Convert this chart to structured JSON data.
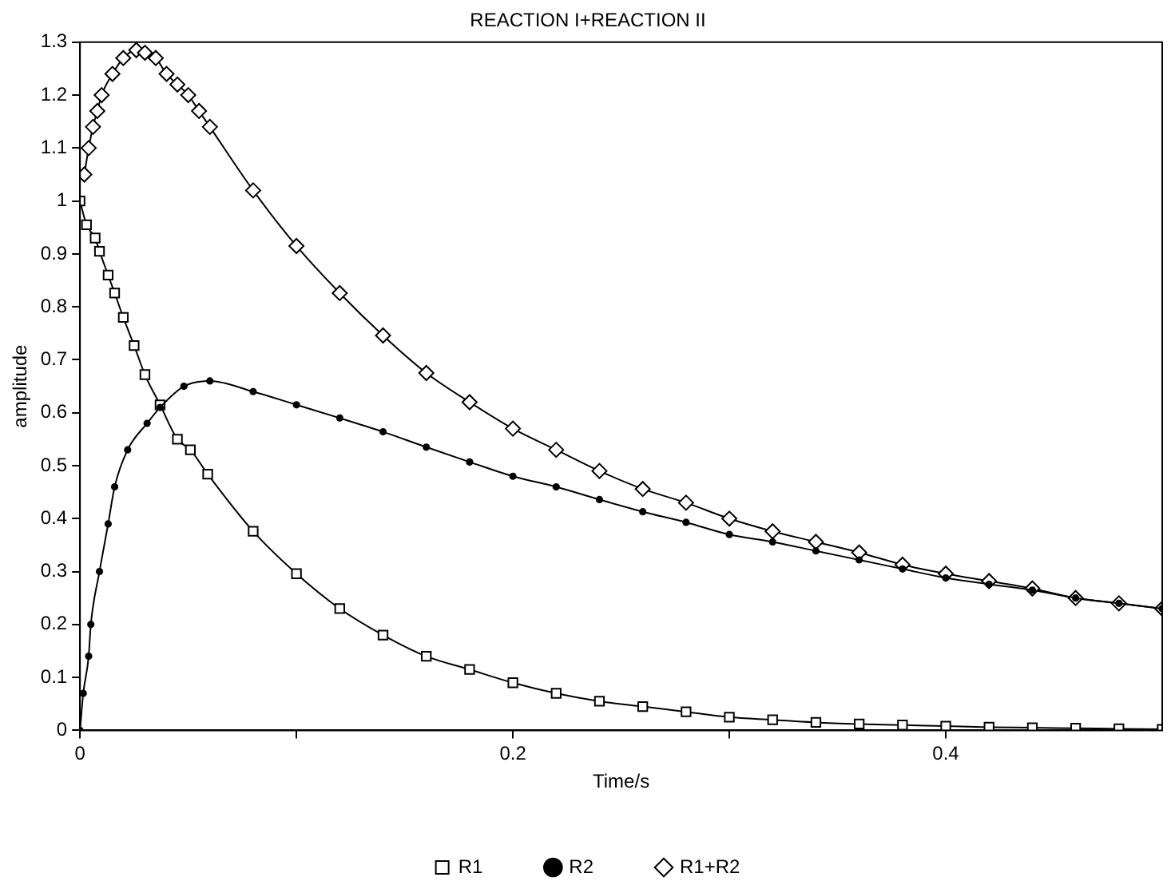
{
  "chart_data": {
    "type": "line",
    "title": "REACTION I+REACTION II",
    "xlabel": "Time/s",
    "ylabel": "amplitude",
    "xlim": [
      0,
      0.5
    ],
    "ylim": [
      0,
      1.3
    ],
    "xticks": [
      0,
      {
        "value": 0.1,
        "label": null
      },
      0.2,
      {
        "value": 0.3,
        "label": null
      },
      0.4
    ],
    "yticks": [
      0,
      0.1,
      0.2,
      0.3,
      0.4,
      0.5,
      0.6,
      0.7,
      0.8,
      0.9,
      1,
      1.1,
      1.2,
      1.3
    ],
    "grid": false,
    "legend": "bottom",
    "line_style": "solid",
    "series": [
      {
        "name": "R1",
        "color": "#000000",
        "marker": "square",
        "x": [
          0,
          0.003,
          0.007,
          0.009,
          0.013,
          0.016,
          0.02,
          0.025,
          0.03,
          0.037,
          0.045,
          0.051,
          0.059,
          0.08,
          0.1,
          0.12,
          0.14,
          0.16,
          0.18,
          0.2,
          0.22,
          0.24,
          0.26,
          0.28,
          0.3,
          0.32,
          0.34,
          0.36,
          0.38,
          0.4,
          0.42,
          0.44,
          0.46,
          0.48,
          0.5
        ],
        "values": [
          1.0,
          0.955,
          0.93,
          0.905,
          0.86,
          0.826,
          0.78,
          0.727,
          0.672,
          0.615,
          0.55,
          0.53,
          0.484,
          0.376,
          0.296,
          0.23,
          0.18,
          0.14,
          0.115,
          0.09,
          0.07,
          0.055,
          0.045,
          0.035,
          0.025,
          0.02,
          0.015,
          0.012,
          0.01,
          0.008,
          0.006,
          0.005,
          0.004,
          0.003,
          0.002
        ]
      },
      {
        "name": "R2",
        "color": "#000000",
        "marker": "circle",
        "x": [
          0,
          0.0015,
          0.004,
          0.005,
          0.009,
          0.013,
          0.016,
          0.022,
          0.031,
          0.037,
          0.048,
          0.06,
          0.08,
          0.1,
          0.12,
          0.14,
          0.16,
          0.18,
          0.2,
          0.22,
          0.24,
          0.26,
          0.28,
          0.3,
          0.32,
          0.34,
          0.36,
          0.38,
          0.4,
          0.42,
          0.44,
          0.46,
          0.48,
          0.5
        ],
        "values": [
          0,
          0.07,
          0.14,
          0.2,
          0.3,
          0.39,
          0.46,
          0.53,
          0.58,
          0.61,
          0.65,
          0.66,
          0.64,
          0.615,
          0.59,
          0.564,
          0.535,
          0.507,
          0.48,
          0.46,
          0.436,
          0.413,
          0.393,
          0.37,
          0.356,
          0.339,
          0.322,
          0.305,
          0.288,
          0.276,
          0.265,
          0.25,
          0.24,
          0.23
        ]
      },
      {
        "name": "R1+R2",
        "color": "#000000",
        "marker": "diamond",
        "x": [
          0.002,
          0.004,
          0.006,
          0.008,
          0.01,
          0.015,
          0.02,
          0.026,
          0.03,
          0.035,
          0.04,
          0.045,
          0.05,
          0.055,
          0.06,
          0.08,
          0.1,
          0.12,
          0.14,
          0.16,
          0.18,
          0.2,
          0.22,
          0.24,
          0.26,
          0.28,
          0.3,
          0.32,
          0.34,
          0.36,
          0.38,
          0.4,
          0.42,
          0.44,
          0.46,
          0.48,
          0.5
        ],
        "values": [
          1.05,
          1.1,
          1.14,
          1.17,
          1.2,
          1.24,
          1.27,
          1.285,
          1.28,
          1.27,
          1.24,
          1.22,
          1.2,
          1.17,
          1.14,
          1.02,
          0.915,
          0.826,
          0.746,
          0.675,
          0.62,
          0.57,
          0.53,
          0.49,
          0.456,
          0.43,
          0.4,
          0.376,
          0.356,
          0.336,
          0.313,
          0.296,
          0.282,
          0.268,
          0.25,
          0.24,
          0.23
        ]
      }
    ]
  }
}
